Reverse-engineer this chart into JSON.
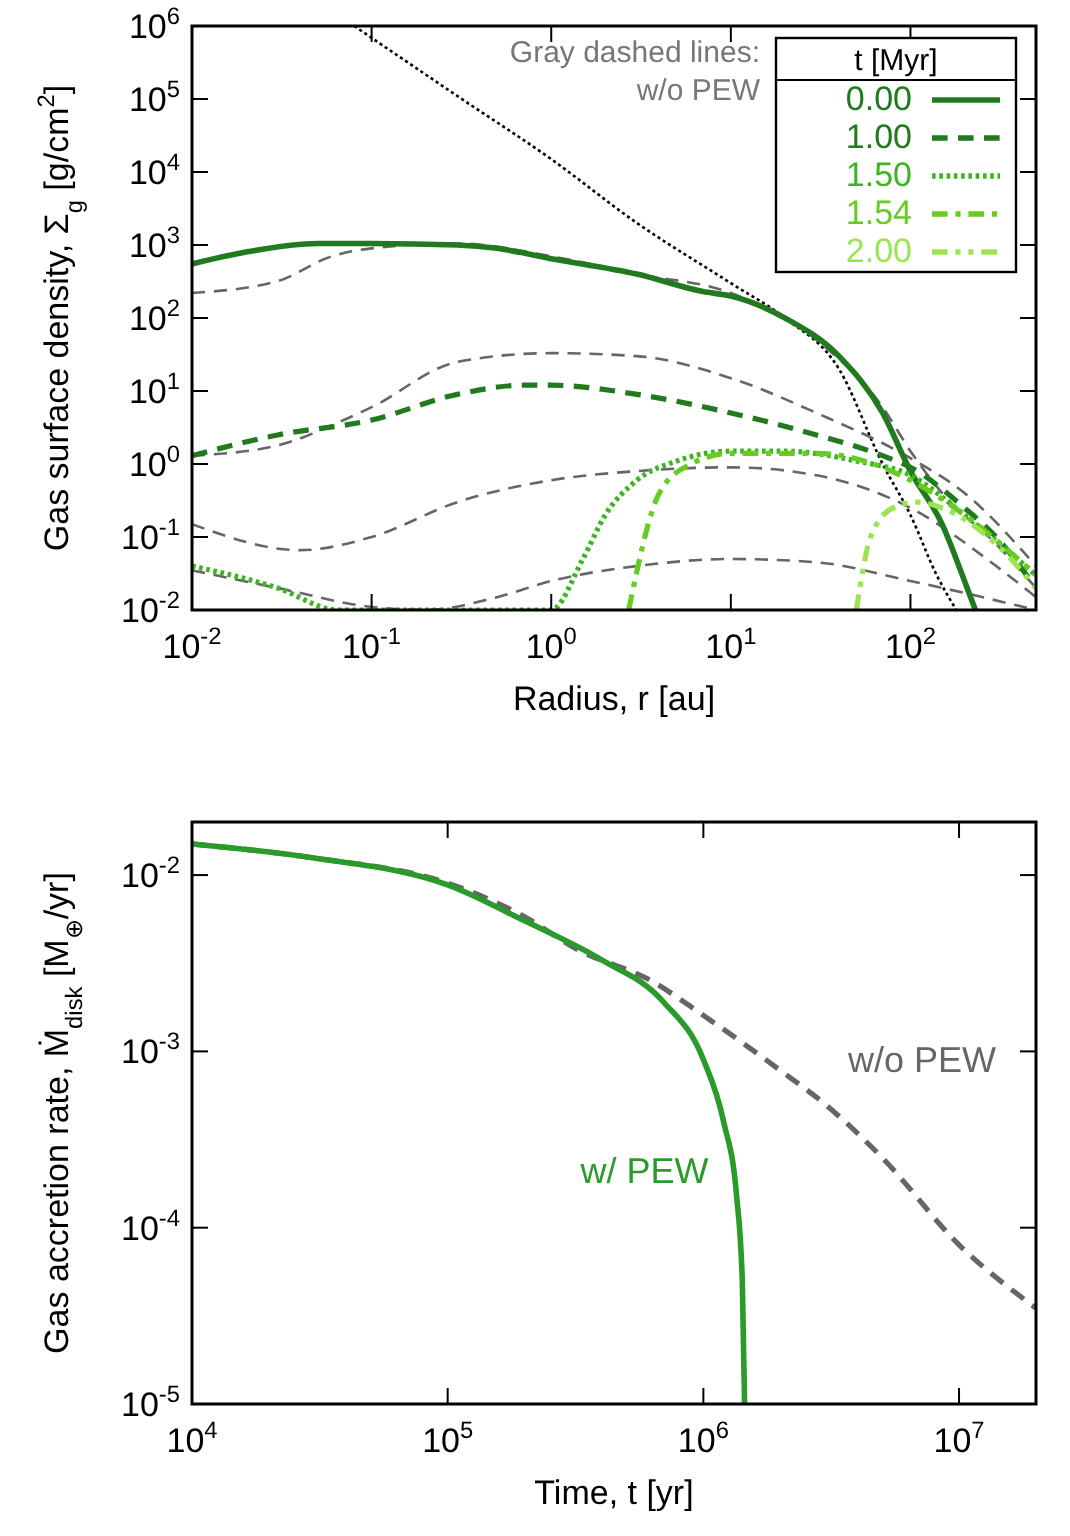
{
  "chart_data": [
    {
      "type": "line",
      "xlabel": "Radius, r [au]",
      "ylabel": "Gas surface density, Σ$_{g}$ [g/cm$^{2}$]",
      "log": "xy",
      "xlim": [
        0.01,
        500
      ],
      "ylim": [
        0.01,
        1000000
      ],
      "xticks": [
        {
          "value": 0.01,
          "label": "10$^{-2}$"
        },
        {
          "value": 0.1,
          "label": "10$^{-1}$"
        },
        {
          "value": 1,
          "label": "10$^{0}$"
        },
        {
          "value": 10,
          "label": "10$^{1}$"
        },
        {
          "value": 100,
          "label": "10$^{2}$"
        }
      ],
      "yticks": [
        {
          "value": 0.01,
          "label": "10$^{-2}$"
        },
        {
          "value": 0.1,
          "label": "10$^{-1}$"
        },
        {
          "value": 1,
          "label": "10$^{0}$"
        },
        {
          "value": 10,
          "label": "10$^{1}$"
        },
        {
          "value": 100,
          "label": "10$^{2}$"
        },
        {
          "value": 1000,
          "label": "10$^{3}$"
        },
        {
          "value": 10000,
          "label": "10$^{4}$"
        },
        {
          "value": 100000,
          "label": "10$^{5}$"
        },
        {
          "value": 1000000,
          "label": "10$^{6}$"
        }
      ],
      "legend": "top right",
      "legend_title": "t [Myr]",
      "annotations": [
        "Gray dashed lines:\nw/o PEW"
      ],
      "series": [
        {
          "color": "#000000",
          "line_style": "dotted",
          "x": [
            0.08,
            0.3,
            1,
            3,
            10,
            20,
            40,
            70,
            100,
            140,
            180
          ],
          "values": [
            1000000,
            110000,
            15000,
            2000,
            300,
            100,
            20,
            1,
            0.2,
            0.03,
            0.01
          ]
        },
        {
          "color": "#666666",
          "line_style": "dashed",
          "x": [
            0.01,
            0.03,
            0.06,
            0.1,
            0.3,
            1,
            3,
            10,
            30,
            70,
            100,
            150,
            300,
            500
          ],
          "values": [
            220,
            320,
            700,
            900,
            1050,
            700,
            400,
            220,
            50,
            6,
            1.5,
            0.4,
            0.08,
            0.02
          ]
        },
        {
          "color": "#666666",
          "line_style": "dashed",
          "x": [
            0.01,
            0.03,
            0.07,
            0.1,
            0.3,
            1,
            3,
            10,
            30,
            100,
            200,
            500
          ],
          "values": [
            1.3,
            1.8,
            4,
            6,
            25,
            33,
            30,
            15,
            5,
            1.2,
            0.4,
            0.04
          ]
        },
        {
          "color": "#666666",
          "line_style": "dashed",
          "x": [
            0.01,
            0.04,
            0.1,
            0.3,
            1,
            3,
            10,
            30,
            100,
            300,
            500
          ],
          "values": [
            0.15,
            0.066,
            0.1,
            0.3,
            0.6,
            0.8,
            0.9,
            0.7,
            0.25,
            0.04,
            0.015
          ]
        },
        {
          "color": "#666666",
          "line_style": "dashed",
          "x": [
            0.01,
            0.03,
            0.1,
            0.2,
            0.5,
            1,
            3,
            10,
            30,
            100,
            500
          ],
          "values": [
            0.035,
            0.02,
            0.011,
            0.01,
            0.015,
            0.025,
            0.04,
            0.05,
            0.045,
            0.025,
            0.01
          ]
        },
        {
          "name": "0.00",
          "color": "#217a1e",
          "line_style": "solid",
          "x": [
            0.01,
            0.02,
            0.05,
            0.1,
            0.3,
            0.5,
            1,
            3,
            7,
            10,
            20,
            40,
            70,
            100,
            150,
            200,
            230
          ],
          "values": [
            550,
            800,
            1050,
            1050,
            1000,
            900,
            650,
            400,
            230,
            200,
            100,
            30,
            5,
            0.8,
            0.15,
            0.025,
            0.01
          ]
        },
        {
          "name": "1.00",
          "color": "#217a1e",
          "line_style": "dashed",
          "x": [
            0.01,
            0.03,
            0.1,
            0.3,
            0.7,
            1,
            3,
            10,
            30,
            70,
            100,
            200,
            300,
            500
          ],
          "values": [
            1.3,
            2.5,
            4,
            9,
            12,
            12,
            9,
            5,
            2.5,
            1.3,
            0.9,
            0.25,
            0.1,
            0.02
          ]
        },
        {
          "name": "1.50",
          "color": "#3cb521",
          "line_style": "dotted",
          "x": [
            0.01,
            0.03,
            0.065,
            1,
            1.5,
            2,
            3,
            5,
            10,
            20,
            50,
            100,
            200,
            500
          ],
          "values": [
            0.04,
            0.02,
            0.01,
            0.01,
            0.05,
            0.2,
            0.6,
            1.1,
            1.5,
            1.5,
            1.1,
            0.7,
            0.2,
            0.03
          ]
        },
        {
          "name": "1.54",
          "color": "#66cc22",
          "line_style": "dashdot",
          "x": [
            2.7,
            4,
            6,
            10,
            30,
            100,
            200,
            500
          ],
          "values": [
            0.01,
            0.4,
            1,
            1.4,
            1.4,
            0.6,
            0.2,
            0.03
          ]
        },
        {
          "name": "2.00",
          "color": "#9be650",
          "line_style": "dashdotdot",
          "x": [
            50,
            60,
            80,
            110,
            150,
            300,
            500
          ],
          "values": [
            0.01,
            0.1,
            0.25,
            0.3,
            0.25,
            0.08,
            0.02
          ]
        }
      ]
    },
    {
      "type": "line",
      "xlabel": "Time, t [yr]",
      "ylabel": "Gas accretion rate, Ṁ$_{disk}$ [M$_{⊕}$/yr]",
      "log": "xy",
      "xlim": [
        10000,
        20000000
      ],
      "ylim": [
        1e-05,
        0.02
      ],
      "xticks": [
        {
          "value": 10000,
          "label": "10$^{4}$"
        },
        {
          "value": 100000,
          "label": "10$^{5}$"
        },
        {
          "value": 1000000,
          "label": "10$^{6}$"
        },
        {
          "value": 10000000,
          "label": "10$^{7}$"
        }
      ],
      "yticks": [
        {
          "value": 1e-05,
          "label": "10$^{-5}$"
        },
        {
          "value": 0.0001,
          "label": "10$^{-4}$"
        },
        {
          "value": 0.001,
          "label": "10$^{-3}$"
        },
        {
          "value": 0.01,
          "label": "10$^{-2}$"
        }
      ],
      "legend": false,
      "series": [
        {
          "name": "w/o PEW",
          "color": "#666666",
          "line_style": "dashed",
          "x": [
            10000,
            30000,
            100000,
            200000,
            320000,
            630000,
            1000000,
            2000000,
            3000000,
            5000000,
            10000000,
            20000000
          ],
          "values": [
            0.015,
            0.0125,
            0.009,
            0.0058,
            0.0038,
            0.0025,
            0.0016,
            0.00078,
            0.0005,
            0.00025,
            8e-05,
            3.5e-05
          ]
        },
        {
          "name": "w/ PEW",
          "color": "#2a9a2a",
          "line_style": "solid",
          "x": [
            10000,
            30000,
            100000,
            200000,
            400000,
            700000,
            1000000,
            1200000,
            1350000,
            1420000,
            1450000
          ],
          "values": [
            0.015,
            0.0125,
            0.0088,
            0.0055,
            0.0033,
            0.0019,
            0.0009,
            0.0004,
            0.00015,
            5e-05,
            1e-05
          ]
        }
      ]
    }
  ]
}
